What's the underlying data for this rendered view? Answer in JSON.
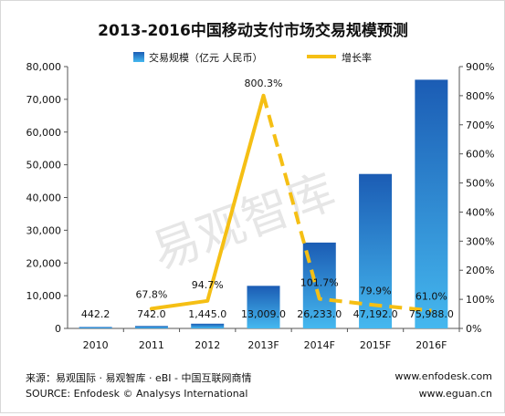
{
  "chart_data": {
    "type": "bar",
    "title": "2013-2016中国移动支付市场交易规模预测",
    "categories": [
      "2010",
      "2011",
      "2012",
      "2013F",
      "2014F",
      "2015F",
      "2016F"
    ],
    "series": [
      {
        "name": "交易规模（亿元 人民币）",
        "type": "bar",
        "axis": "left",
        "values": [
          442.2,
          742.0,
          1445.0,
          13009.0,
          26233.0,
          47192.0,
          75988.0
        ],
        "labels": [
          "442.2",
          "742.0",
          "1,445.0",
          "13,009.0",
          "26,233.0",
          "47,192.0",
          "75,988.0"
        ]
      },
      {
        "name": "增长率",
        "type": "line",
        "axis": "right",
        "values": [
          null,
          67.8,
          94.7,
          800.3,
          101.7,
          79.9,
          61.0
        ],
        "labels": [
          "",
          "67.8%",
          "94.7%",
          "800.3%",
          "101.7%",
          "79.9%",
          "61.0%"
        ],
        "dashed_from_index": 3
      }
    ],
    "y_left": {
      "min": 0,
      "max": 80000,
      "step": 10000,
      "tick_labels": [
        "0",
        "10,000",
        "20,000",
        "30,000",
        "40,000",
        "50,000",
        "60,000",
        "70,000",
        "80,000"
      ]
    },
    "y_right": {
      "min": 0,
      "max": 900,
      "step": 100,
      "tick_labels": [
        "0%",
        "100%",
        "200%",
        "300%",
        "400%",
        "500%",
        "600%",
        "700%",
        "800%",
        "900%"
      ]
    },
    "grid": false,
    "legend_position": "top",
    "colors": {
      "bar_top": "#1b5cb4",
      "bar_bottom": "#45b8ef",
      "line": "#f5bf14",
      "watermark": "#c8c8c8"
    }
  },
  "watermark": "易观智库",
  "footer": {
    "source_cn": "来源：易观国际 · 易观智库 · eBI - 中国互联网商情",
    "source_en": "SOURCE: Enfodesk © Analysys International",
    "url_top": "www.enfodesk.com",
    "url_bottom": "www.eguan.cn"
  }
}
